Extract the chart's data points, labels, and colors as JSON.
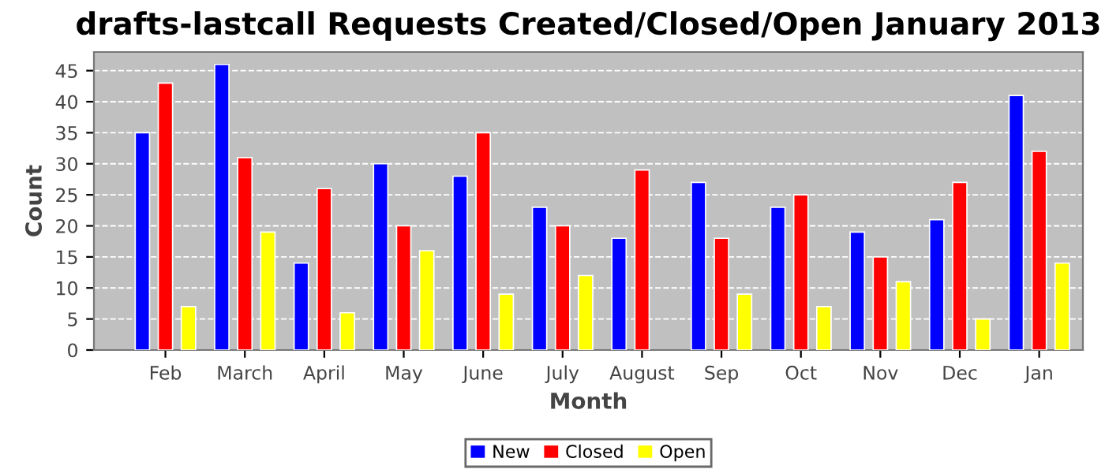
{
  "chart_data": {
    "type": "bar",
    "title": "drafts-lastcall Requests Created/Closed/Open January 2013",
    "xlabel": "Month",
    "ylabel": "Count",
    "categories": [
      "Feb",
      "March",
      "April",
      "May",
      "June",
      "July",
      "August",
      "Sep",
      "Oct",
      "Nov",
      "Dec",
      "Jan"
    ],
    "series": [
      {
        "name": "New",
        "color": "#0000ff",
        "values": [
          35,
          46,
          14,
          30,
          28,
          23,
          18,
          27,
          23,
          19,
          21,
          41
        ]
      },
      {
        "name": "Closed",
        "color": "#ff0000",
        "values": [
          43,
          31,
          26,
          20,
          35,
          20,
          29,
          18,
          25,
          15,
          27,
          32
        ]
      },
      {
        "name": "Open",
        "color": "#ffff00",
        "values": [
          7,
          19,
          6,
          16,
          9,
          12,
          null,
          9,
          7,
          11,
          5,
          14
        ]
      }
    ],
    "ylim": [
      0,
      48
    ],
    "yticks": [
      0,
      5,
      10,
      15,
      20,
      25,
      30,
      35,
      40,
      45
    ],
    "grid": "y",
    "legend": "bottom"
  }
}
